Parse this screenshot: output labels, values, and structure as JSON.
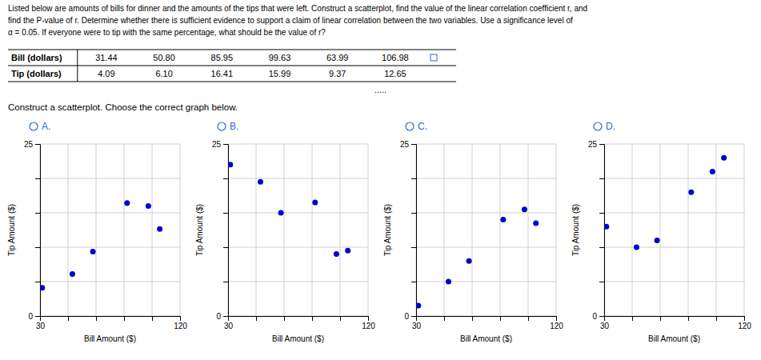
{
  "chart_data": [
    {
      "type": "scatter",
      "title": "A.",
      "xlabel": "Bill Amount ($)",
      "ylabel": "Tip Amount ($)",
      "x": [
        31.44,
        50.8,
        85.95,
        99.63,
        63.99,
        106.98
      ],
      "values": [
        4.09,
        6.1,
        16.41,
        15.99,
        9.37,
        12.65
      ],
      "color": "#0000cc",
      "xlim": [
        30,
        120
      ],
      "ylim": [
        0,
        25
      ],
      "xticks": [
        30,
        {
          "value": 48,
          "label": null
        },
        {
          "value": 66,
          "label": null
        },
        {
          "value": 84,
          "label": null
        },
        {
          "value": 102,
          "label": null
        },
        120
      ],
      "yticks": [
        0,
        {
          "value": 5,
          "label": null
        },
        {
          "value": 10,
          "label": null
        },
        {
          "value": 15,
          "label": null
        },
        {
          "value": 20,
          "label": null
        },
        25
      ],
      "grid": true
    },
    {
      "type": "scatter",
      "title": "B.",
      "xlabel": "Bill Amount ($)",
      "ylabel": "Tip Amount ($)",
      "x": [
        31.44,
        50.8,
        85.95,
        99.63,
        63.99,
        106.98
      ],
      "values": [
        22.0,
        19.5,
        16.5,
        9.0,
        15.0,
        9.5
      ],
      "color": "#0000cc",
      "xlim": [
        30,
        120
      ],
      "ylim": [
        0,
        25
      ],
      "xticks": [
        30,
        {
          "value": 48,
          "label": null
        },
        {
          "value": 66,
          "label": null
        },
        {
          "value": 84,
          "label": null
        },
        {
          "value": 102,
          "label": null
        },
        120
      ],
      "yticks": [
        0,
        {
          "value": 5,
          "label": null
        },
        {
          "value": 10,
          "label": null
        },
        {
          "value": 15,
          "label": null
        },
        {
          "value": 20,
          "label": null
        },
        25
      ],
      "grid": true
    },
    {
      "type": "scatter",
      "title": "C.",
      "xlabel": "Bill Amount ($)",
      "ylabel": "Tip Amount ($)",
      "x": [
        31.44,
        50.8,
        63.99,
        85.95,
        99.63,
        106.98
      ],
      "values": [
        1.5,
        5.0,
        8.0,
        14.0,
        15.5,
        13.5
      ],
      "color": "#0000cc",
      "xlim": [
        30,
        120
      ],
      "ylim": [
        0,
        25
      ],
      "xticks": [
        30,
        {
          "value": 48,
          "label": null
        },
        {
          "value": 66,
          "label": null
        },
        {
          "value": 84,
          "label": null
        },
        {
          "value": 102,
          "label": null
        },
        120
      ],
      "yticks": [
        0,
        {
          "value": 5,
          "label": null
        },
        {
          "value": 10,
          "label": null
        },
        {
          "value": 15,
          "label": null
        },
        {
          "value": 20,
          "label": null
        },
        25
      ],
      "grid": true
    },
    {
      "type": "scatter",
      "title": "D.",
      "xlabel": "Bill Amount ($)",
      "ylabel": "Tip Amount ($)",
      "x": [
        31.44,
        50.8,
        63.99,
        85.95,
        99.63,
        106.98
      ],
      "values": [
        13.0,
        10.0,
        11.0,
        18.0,
        21.0,
        23.0
      ],
      "color": "#0000cc",
      "xlim": [
        30,
        120
      ],
      "ylim": [
        0,
        25
      ],
      "xticks": [
        30,
        {
          "value": 48,
          "label": null
        },
        {
          "value": 66,
          "label": null
        },
        {
          "value": 84,
          "label": null
        },
        {
          "value": 102,
          "label": null
        },
        120
      ],
      "yticks": [
        0,
        {
          "value": 5,
          "label": null
        },
        {
          "value": 10,
          "label": null
        },
        {
          "value": 15,
          "label": null
        },
        {
          "value": 20,
          "label": null
        },
        25
      ],
      "grid": true
    }
  ],
  "page": {
    "description": [
      "Listed below are amounts of bills for dinner and the amounts of the tips that were left. Construct a scatterplot, find the value of the linear correlation coefficient r, and",
      "find the P-value of r. Determine whether there is sufficient evidence to support a claim of linear correlation between the two variables. Use a significance level of",
      "α = 0.05. If everyone were to tip with the same percentage, what should be the value of r?"
    ],
    "table": {
      "rows": [
        {
          "label": "Bill (dollars)",
          "cells": [
            "31.44",
            "50.80",
            "85.95",
            "99.63",
            "63.99",
            "106.98"
          ]
        },
        {
          "label": "Tip (dollars)",
          "cells": [
            "4.09",
            "6.10",
            "16.41",
            "15.99",
            "9.37",
            "12.65"
          ]
        }
      ]
    },
    "separator": ".....",
    "instruction": "Construct a scatterplot. Choose the correct graph below."
  }
}
